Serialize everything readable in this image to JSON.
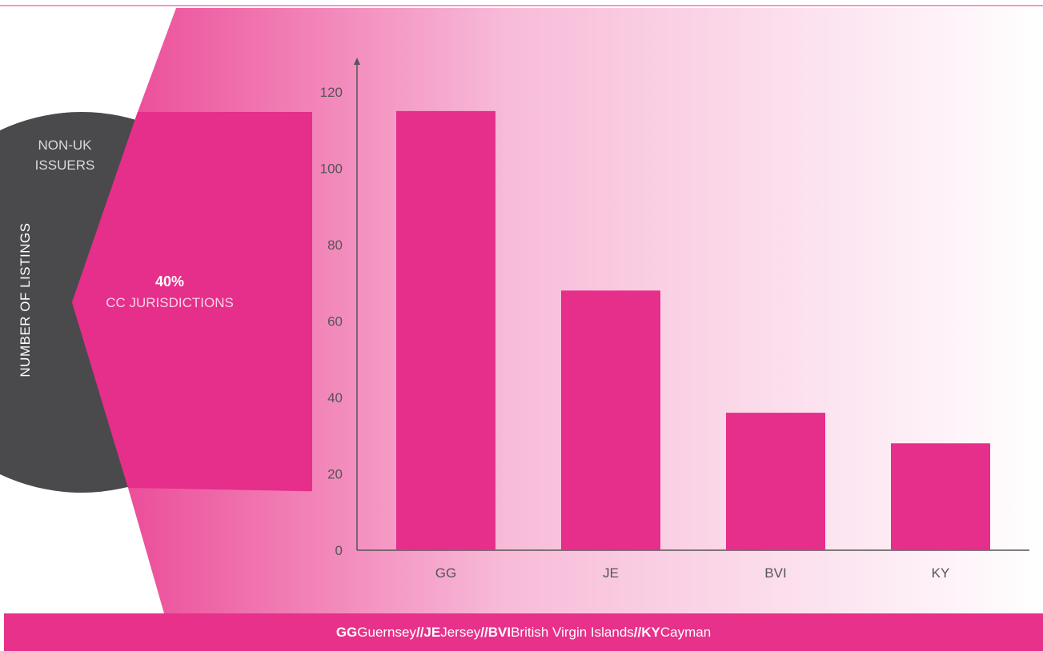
{
  "colors": {
    "accent": "#e62e8b",
    "dark": "#4a4a4d",
    "axis": "#555555",
    "footer_bg": "#e7318a",
    "gradient_start": "#ea3e90",
    "top_line": "#f19ac4"
  },
  "side_panel": {
    "ylabel": "NUMBER OF LISTINGS",
    "non_uk_line1": "NON-UK",
    "non_uk_line2": "ISSUERS",
    "pct": "40%",
    "pct_caption": "CC JURISDICTIONS"
  },
  "chart_data": {
    "type": "bar",
    "categories": [
      "GG",
      "JE",
      "BVI",
      "KY"
    ],
    "values": [
      115,
      68,
      36,
      28
    ],
    "ylim": [
      0,
      120
    ],
    "yticks": [
      0,
      20,
      40,
      60,
      80,
      100,
      120
    ],
    "ylabel": "NUMBER OF LISTINGS",
    "grid": false,
    "bar_color": "#e62e8b"
  },
  "footer": {
    "items": [
      {
        "abbr": "GG",
        "name": "Guernsey"
      },
      {
        "abbr": "JE",
        "name": "Jersey"
      },
      {
        "abbr": "BVI",
        "name": "British Virgin Islands"
      },
      {
        "abbr": "KY",
        "name": "Cayman"
      }
    ],
    "separator": "//"
  }
}
